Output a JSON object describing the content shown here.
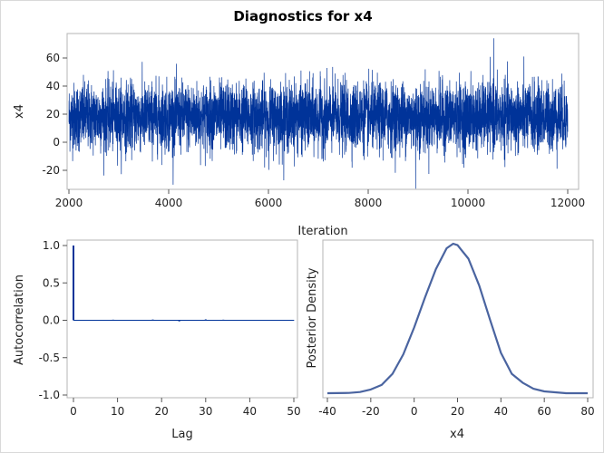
{
  "chart_data": [
    {
      "type": "line",
      "title": "Diagnostics for x4",
      "panel": "trace",
      "xlabel": "Iteration",
      "ylabel": "x4",
      "xlim": [
        2000,
        12000
      ],
      "ylim": [
        -35,
        75
      ],
      "xticks": [
        "2000",
        "4000",
        "6000",
        "8000",
        "10000",
        "12000"
      ],
      "yticks": [
        "-20",
        "0",
        "20",
        "40",
        "60"
      ],
      "series_summary": {
        "center": 18,
        "spread": 12,
        "max": 74,
        "max_at": 10520,
        "min": -33,
        "min_at": 8950
      },
      "color": "#003399"
    },
    {
      "type": "bar",
      "panel": "autocorrelation",
      "xlabel": "Lag",
      "ylabel": "Autocorrelation",
      "xlim": [
        0,
        50
      ],
      "ylim": [
        -1.0,
        1.0
      ],
      "xticks": [
        "0",
        "10",
        "20",
        "30",
        "40",
        "50"
      ],
      "yticks": [
        "-1.0",
        "-0.5",
        "0.0",
        "0.5",
        "1.0"
      ],
      "lags": [
        0,
        1,
        2,
        3,
        4,
        5,
        6,
        7,
        8,
        9,
        10,
        11,
        12,
        13,
        14,
        15,
        16,
        17,
        18,
        19,
        20,
        21,
        22,
        23,
        24,
        25,
        26,
        27,
        28,
        29,
        30,
        31,
        32,
        33,
        34,
        35,
        36,
        37,
        38,
        39,
        40,
        41,
        42,
        43,
        44,
        45,
        46,
        47,
        48,
        49,
        50
      ],
      "values": [
        1.0,
        0,
        0,
        0,
        0.005,
        0,
        0,
        0,
        -0.005,
        0.008,
        0,
        0,
        0,
        0,
        0,
        0,
        0,
        0,
        0.01,
        -0.006,
        0,
        0,
        0,
        0,
        -0.015,
        0,
        0.004,
        0.004,
        0.004,
        0,
        0.012,
        0.006,
        0,
        0,
        0.008,
        0,
        0,
        0,
        0,
        0.004,
        0,
        0,
        0,
        -0.005,
        0,
        -0.004,
        0,
        -0.004,
        0,
        0,
        -0.004
      ],
      "color": "#003399"
    },
    {
      "type": "line",
      "panel": "density",
      "xlabel": "x4",
      "ylabel": "Posterior Density",
      "xlim": [
        -40,
        80
      ],
      "xticks": [
        "-40",
        "-20",
        "0",
        "20",
        "40",
        "60",
        "80"
      ],
      "x": [
        -40,
        -30,
        -25,
        -20,
        -15,
        -10,
        -5,
        0,
        5,
        10,
        15,
        18,
        20,
        25,
        30,
        35,
        40,
        45,
        50,
        55,
        60,
        70,
        80
      ],
      "y": [
        0.0,
        0.002,
        0.008,
        0.025,
        0.055,
        0.13,
        0.26,
        0.44,
        0.64,
        0.83,
        0.97,
        1.0,
        0.99,
        0.9,
        0.72,
        0.49,
        0.27,
        0.13,
        0.07,
        0.03,
        0.012,
        0.0,
        0.0
      ],
      "color": "#4a64a0"
    }
  ]
}
